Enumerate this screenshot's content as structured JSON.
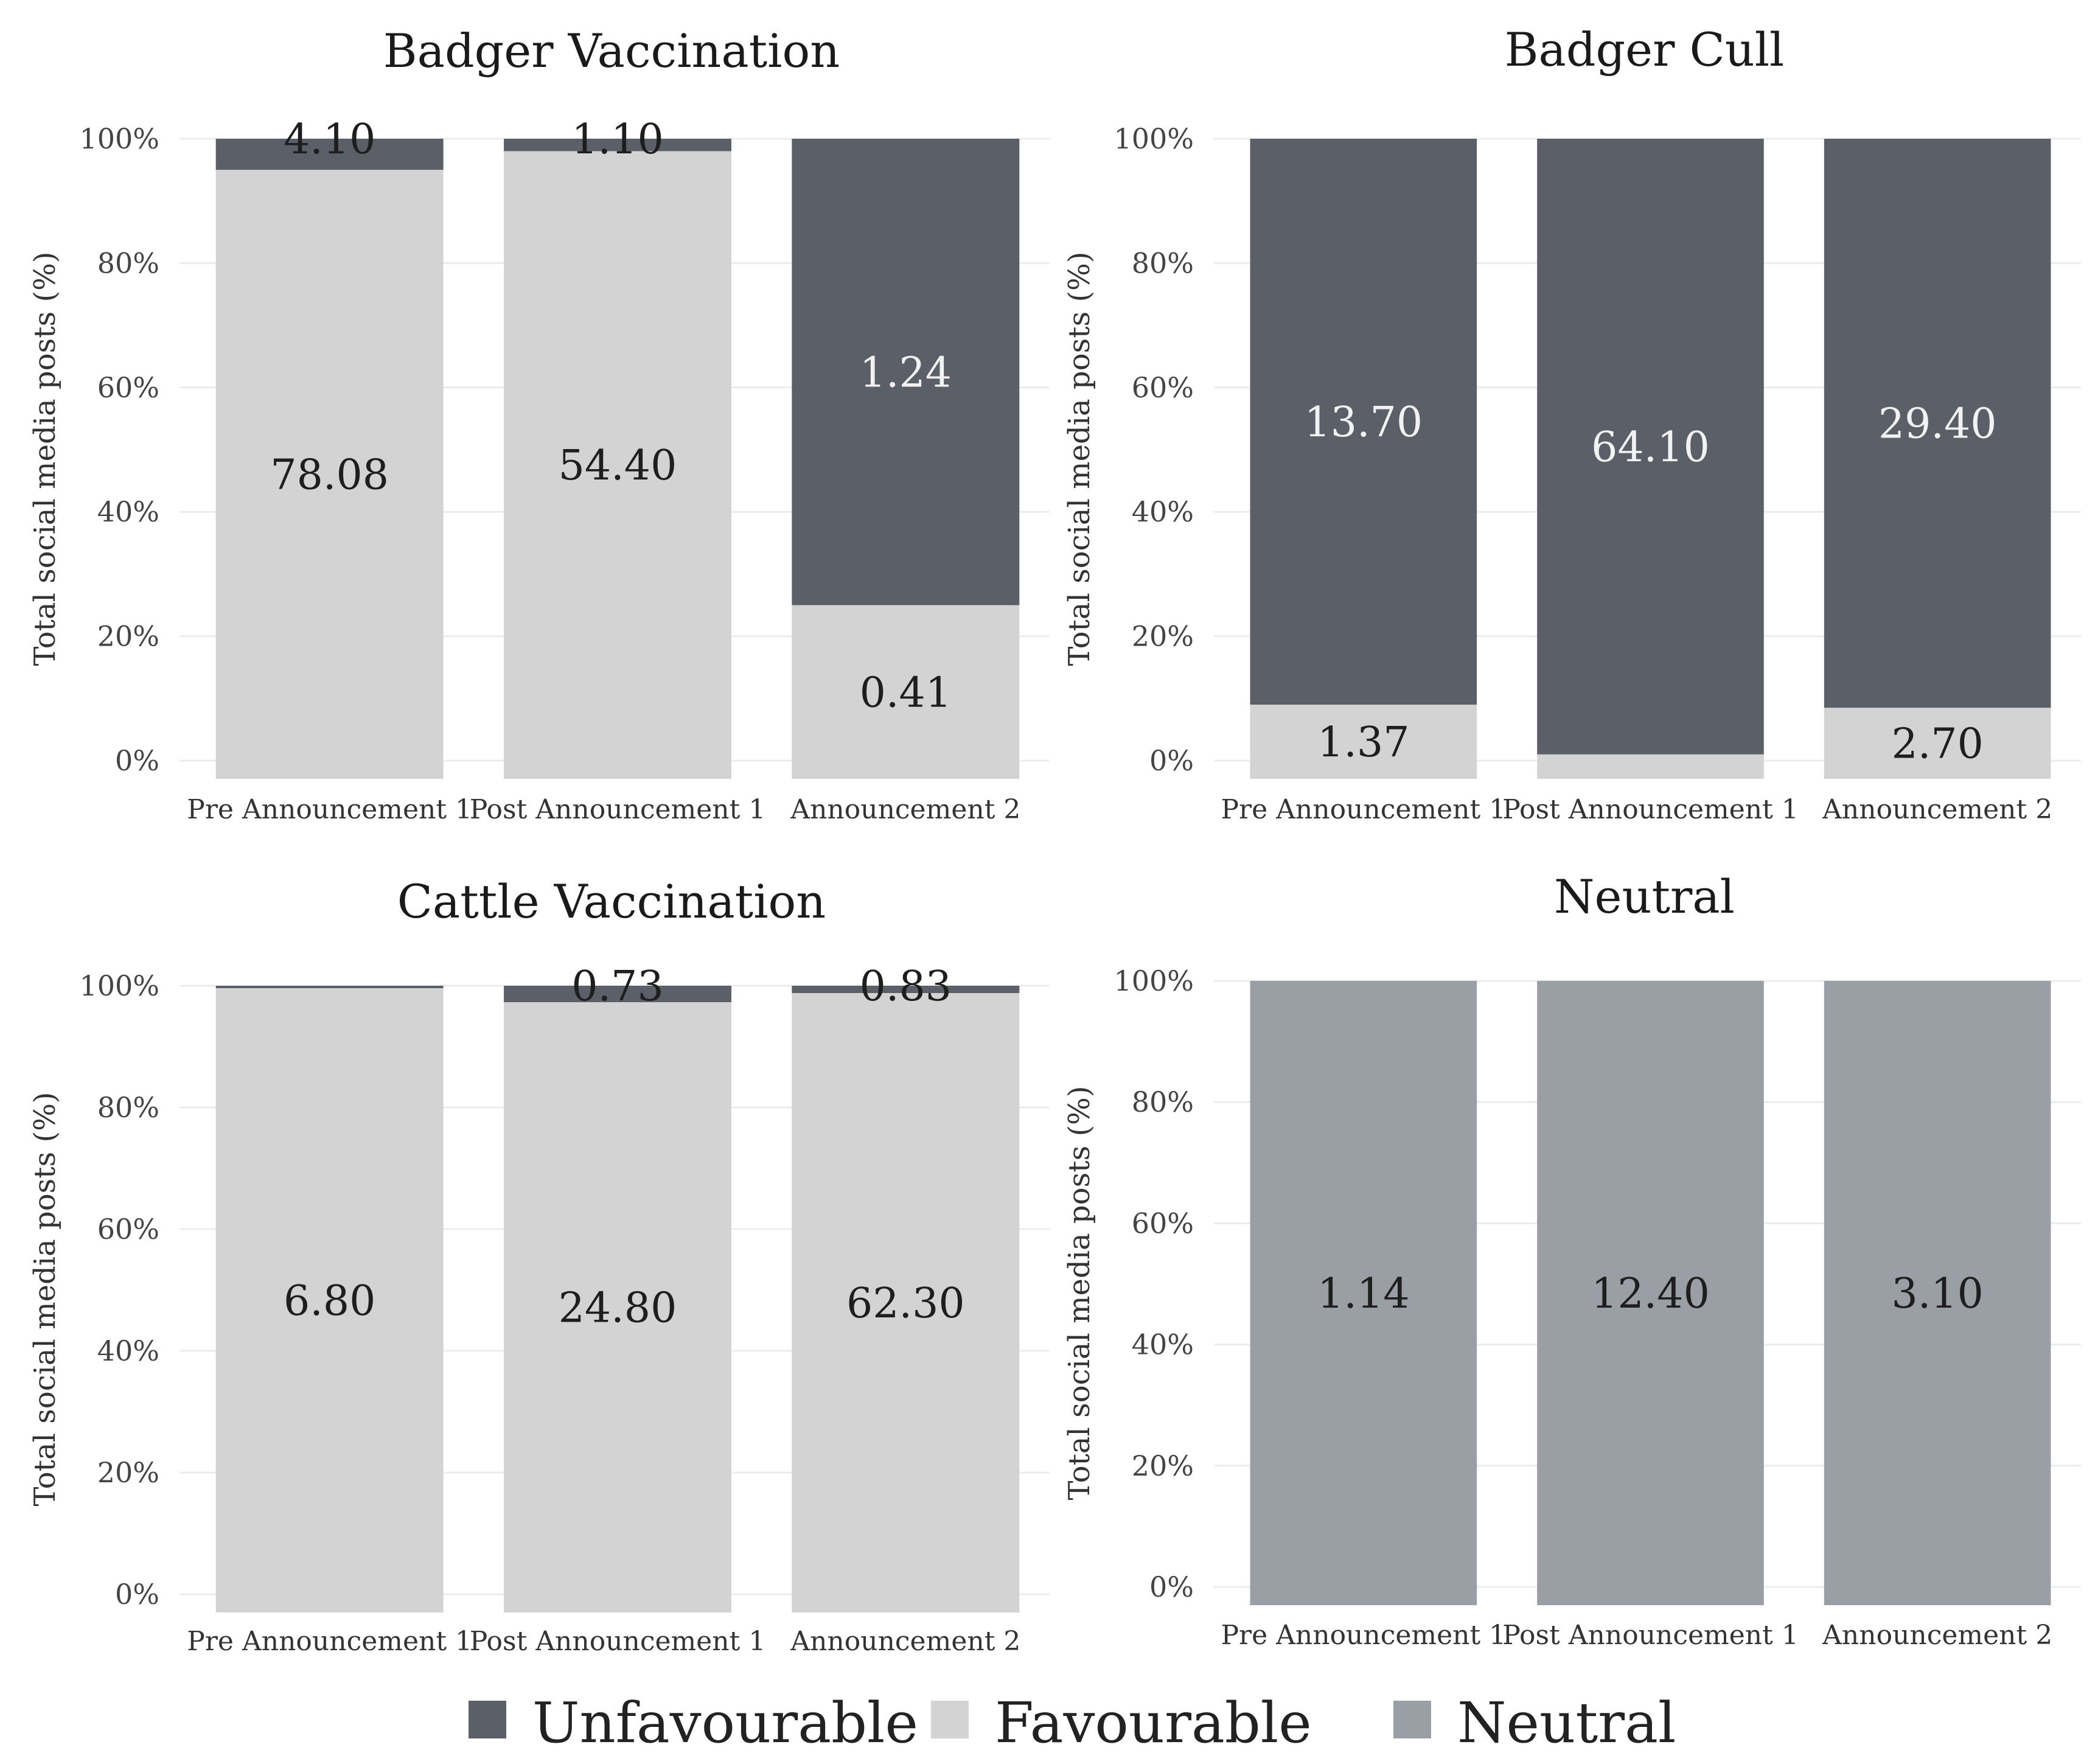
{
  "colors": {
    "unfavourable": "#5b5f67",
    "favourable": "#d3d3d3",
    "neutral": "#9a9ea5",
    "grid": "#ececec"
  },
  "y_ticks": [
    "0%",
    "20%",
    "40%",
    "60%",
    "80%",
    "100%"
  ],
  "ylabel": "Total social media posts (%)",
  "legend": [
    {
      "key": "unfavourable",
      "label": "Unfavourable"
    },
    {
      "key": "favourable",
      "label": "Favourable"
    },
    {
      "key": "neutral",
      "label": "Neutral"
    }
  ],
  "chart_data": [
    {
      "type": "bar",
      "stacked": true,
      "title": "Badger Vaccination",
      "xlabel": "",
      "ylabel": "Total social media posts (%)",
      "ylim": [
        0,
        100
      ],
      "categories": [
        "Pre Announcement 1",
        "Post Announcement 1",
        "Announcement 2"
      ],
      "series": [
        {
          "name": "Favourable",
          "color_key": "favourable",
          "values": [
            95,
            98,
            25
          ],
          "labels": [
            "78.08",
            "54.40",
            "0.41"
          ]
        },
        {
          "name": "Unfavourable",
          "color_key": "unfavourable",
          "values": [
            5,
            2,
            75
          ],
          "labels": [
            "4.10",
            "1.10",
            "1.24"
          ]
        }
      ]
    },
    {
      "type": "bar",
      "stacked": true,
      "title": "Badger Cull",
      "xlabel": "",
      "ylabel": "Total social media posts (%)",
      "ylim": [
        0,
        100
      ],
      "categories": [
        "Pre Announcement 1",
        "Post Announcement 1",
        "Announcement 2"
      ],
      "series": [
        {
          "name": "Favourable",
          "color_key": "favourable",
          "values": [
            9,
            1,
            8.5
          ],
          "labels": [
            "1.37",
            "",
            "2.70"
          ]
        },
        {
          "name": "Unfavourable",
          "color_key": "unfavourable",
          "values": [
            91,
            99,
            91.5
          ],
          "labels": [
            "13.70",
            "64.10",
            "29.40"
          ]
        }
      ]
    },
    {
      "type": "bar",
      "stacked": true,
      "title": "Cattle Vaccination",
      "xlabel": "",
      "ylabel": "Total social media posts (%)",
      "ylim": [
        0,
        100
      ],
      "categories": [
        "Pre Announcement 1",
        "Post Announcement 1",
        "Announcement 2"
      ],
      "series": [
        {
          "name": "Favourable",
          "color_key": "favourable",
          "values": [
            99.6,
            97.3,
            98.8
          ],
          "labels": [
            "6.80",
            "24.80",
            "62.30"
          ]
        },
        {
          "name": "Unfavourable",
          "color_key": "unfavourable",
          "values": [
            0.4,
            2.7,
            1.2
          ],
          "labels": [
            "",
            "0.73",
            "0.83"
          ]
        }
      ]
    },
    {
      "type": "bar",
      "stacked": true,
      "title": "Neutral",
      "xlabel": "",
      "ylabel": "Total social media posts (%)",
      "ylim": [
        0,
        100
      ],
      "categories": [
        "Pre Announcement 1",
        "Post Announcement 1",
        "Announcement 2"
      ],
      "series": [
        {
          "name": "Neutral",
          "color_key": "neutral",
          "values": [
            100,
            100,
            100
          ],
          "labels": [
            "1.14",
            "12.40",
            "3.10"
          ]
        }
      ]
    }
  ]
}
